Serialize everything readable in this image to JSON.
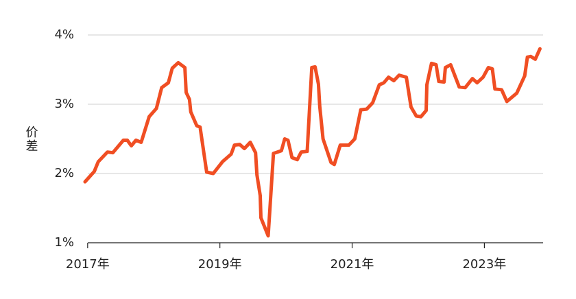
{
  "chart_data": {
    "type": "line",
    "y_label": "价差",
    "x": [
      2016.96,
      2017.1,
      2017.16,
      2017.3,
      2017.38,
      2017.54,
      2017.6,
      2017.66,
      2017.73,
      2017.81,
      2017.93,
      2018.04,
      2018.12,
      2018.22,
      2018.28,
      2018.37,
      2018.47,
      2018.49,
      2018.54,
      2018.56,
      2018.65,
      2018.7,
      2018.8,
      2018.9,
      2019.04,
      2019.17,
      2019.22,
      2019.3,
      2019.37,
      2019.46,
      2019.54,
      2019.56,
      2019.61,
      2019.62,
      2019.73,
      2019.81,
      2019.93,
      2019.98,
      2020.03,
      2020.09,
      2020.17,
      2020.23,
      2020.32,
      2020.39,
      2020.44,
      2020.49,
      2020.51,
      2020.56,
      2020.68,
      2020.73,
      2020.82,
      2020.95,
      2021.04,
      2021.13,
      2021.22,
      2021.31,
      2021.41,
      2021.48,
      2021.55,
      2021.63,
      2021.71,
      2021.82,
      2021.89,
      2021.97,
      2022.04,
      2022.12,
      2022.13,
      2022.2,
      2022.27,
      2022.31,
      2022.39,
      2022.41,
      2022.49,
      2022.62,
      2022.71,
      2022.82,
      2022.89,
      2022.98,
      2023.06,
      2023.12,
      2023.16,
      2023.26,
      2023.34,
      2023.49,
      2023.61,
      2023.65,
      2023.7,
      2023.77,
      2023.84
    ],
    "series": [
      {
        "color": "#f04e23",
        "values": [
          1.88,
          2.03,
          2.17,
          2.31,
          2.3,
          2.48,
          2.48,
          2.4,
          2.48,
          2.45,
          2.82,
          2.94,
          3.24,
          3.31,
          3.52,
          3.6,
          3.53,
          3.17,
          3.07,
          2.89,
          2.69,
          2.67,
          2.02,
          2.0,
          2.17,
          2.28,
          2.41,
          2.42,
          2.36,
          2.45,
          2.3,
          1.98,
          1.68,
          1.36,
          1.1,
          2.29,
          2.33,
          2.5,
          2.48,
          2.23,
          2.2,
          2.31,
          2.32,
          3.53,
          3.54,
          3.29,
          2.97,
          2.5,
          2.16,
          2.13,
          2.41,
          2.41,
          2.5,
          2.92,
          2.93,
          3.02,
          3.28,
          3.31,
          3.39,
          3.34,
          3.42,
          3.39,
          2.96,
          2.83,
          2.82,
          2.91,
          3.28,
          3.59,
          3.57,
          3.33,
          3.32,
          3.53,
          3.57,
          3.25,
          3.24,
          3.37,
          3.31,
          3.39,
          3.53,
          3.51,
          3.22,
          3.21,
          3.04,
          3.16,
          3.41,
          3.68,
          3.69,
          3.65,
          3.8
        ]
      }
    ],
    "xlim": [
      2016.95,
      2023.95
    ],
    "xticks": [
      {
        "value": 2017,
        "label": "2017年"
      },
      {
        "value": 2019,
        "label": "2019年"
      },
      {
        "value": 2021,
        "label": "2021年"
      },
      {
        "value": 2023,
        "label": "2023年"
      }
    ],
    "ylim": [
      1,
      4
    ],
    "yticks": [
      {
        "value": 1,
        "label": "1%"
      },
      {
        "value": 2,
        "label": "2%"
      },
      {
        "value": 3,
        "label": "3%"
      },
      {
        "value": 4,
        "label": "4%"
      }
    ],
    "grid": true
  }
}
